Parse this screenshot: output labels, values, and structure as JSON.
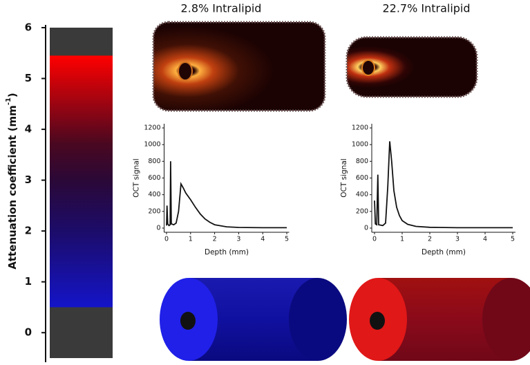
{
  "colorbar": {
    "label": [
      "Attenuation coefficient (mm",
      "-1",
      ")"
    ],
    "ylim": [
      -0.5,
      6
    ],
    "yticks": [
      0,
      1,
      2,
      3,
      4,
      5,
      6
    ],
    "range": [
      0.5,
      5.45
    ]
  },
  "chart_data": [
    {
      "type": "line",
      "title": "2.8% Intralipid",
      "x_label": "Depth (mm)",
      "y_label": "OCT signal",
      "color": "#111111",
      "xlim": [
        -0.1,
        5.1
      ],
      "xticks": [
        0,
        1,
        2,
        3,
        4,
        5
      ],
      "ylim": [
        -50,
        1250
      ],
      "yticks": [
        0,
        200,
        400,
        600,
        800,
        1000,
        1200
      ],
      "x": [
        0,
        0.02,
        0.05,
        0.1,
        0.15,
        0.17,
        0.2,
        0.3,
        0.4,
        0.5,
        0.6,
        0.7,
        0.8,
        1.0,
        1.2,
        1.4,
        1.6,
        1.8,
        2.0,
        2.5,
        3,
        4,
        5
      ],
      "values": [
        30,
        270,
        50,
        30,
        40,
        800,
        50,
        40,
        60,
        200,
        530,
        480,
        420,
        340,
        250,
        170,
        110,
        70,
        40,
        15,
        8,
        5,
        5
      ]
    },
    {
      "type": "line",
      "title": "22.7% Intralipid",
      "x_label": "Depth (mm)",
      "y_label": "OCT signal",
      "color": "#111111",
      "xlim": [
        -0.1,
        5.1
      ],
      "xticks": [
        0,
        1,
        2,
        3,
        4,
        5
      ],
      "ylim": [
        -50,
        1250
      ],
      "yticks": [
        0,
        200,
        400,
        600,
        800,
        1000,
        1200
      ],
      "x": [
        0,
        0.03,
        0.08,
        0.12,
        0.15,
        0.3,
        0.4,
        0.48,
        0.55,
        0.62,
        0.7,
        0.8,
        0.9,
        1.0,
        1.2,
        1.5,
        2,
        3,
        5
      ],
      "values": [
        330,
        50,
        40,
        640,
        40,
        30,
        60,
        500,
        1040,
        800,
        450,
        250,
        150,
        90,
        45,
        20,
        10,
        5,
        5
      ]
    }
  ]
}
